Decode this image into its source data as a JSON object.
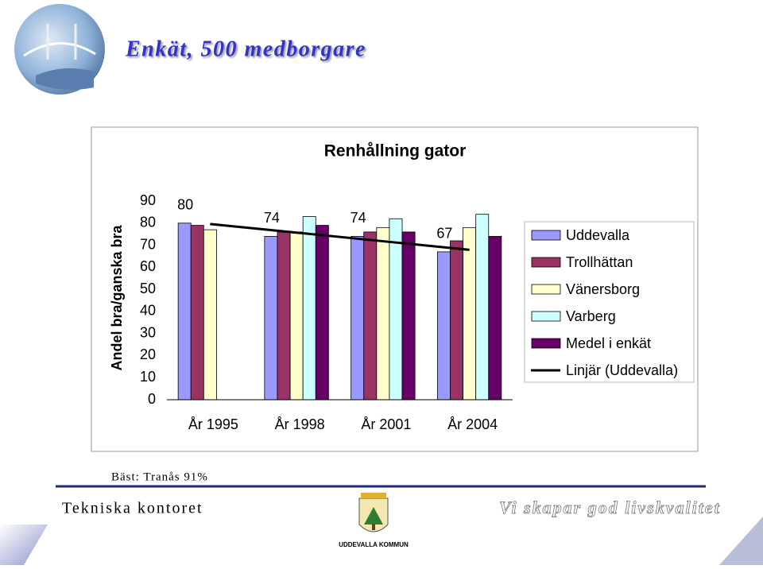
{
  "header": {
    "title": "Enkät, 500 medborgare"
  },
  "chart_data": {
    "type": "bar",
    "title": "Renhållning gator",
    "ylabel": "Andel bra/ganska bra",
    "categories": [
      "År 1995",
      "År 1998",
      "År 2001",
      "År 2004"
    ],
    "ylim": [
      0,
      90
    ],
    "yticks": [
      0,
      10,
      20,
      30,
      40,
      50,
      60,
      70,
      80,
      90
    ],
    "series": [
      {
        "name": "Uddevalla",
        "color": "#9999ff",
        "values": [
          80,
          74,
          74,
          67
        ],
        "data_labels": true
      },
      {
        "name": "Trollhättan",
        "color": "#993366",
        "values": [
          79,
          76,
          76,
          72
        ]
      },
      {
        "name": "Vänersborg",
        "color": "#ffffcc",
        "values": [
          77,
          76,
          78,
          78
        ]
      },
      {
        "name": "Varberg",
        "color": "#ccffff",
        "values": [
          null,
          83,
          82,
          84
        ]
      },
      {
        "name": "Medel i enkät",
        "color": "#660066",
        "values": [
          null,
          79,
          76,
          74
        ]
      },
      {
        "name": "Linjär (Uddevalla)",
        "color": "#000000",
        "type": "line",
        "values": [
          79.6,
          75.7,
          71.8,
          67.9
        ]
      }
    ],
    "legend": "right"
  },
  "note": "Bäst: Tranås 91%",
  "footer": {
    "department": "Tekniska kontoret",
    "logo_text": "UDDEVALLA KOMMUN",
    "slogan": "Vi skapar god livskvalitet"
  }
}
